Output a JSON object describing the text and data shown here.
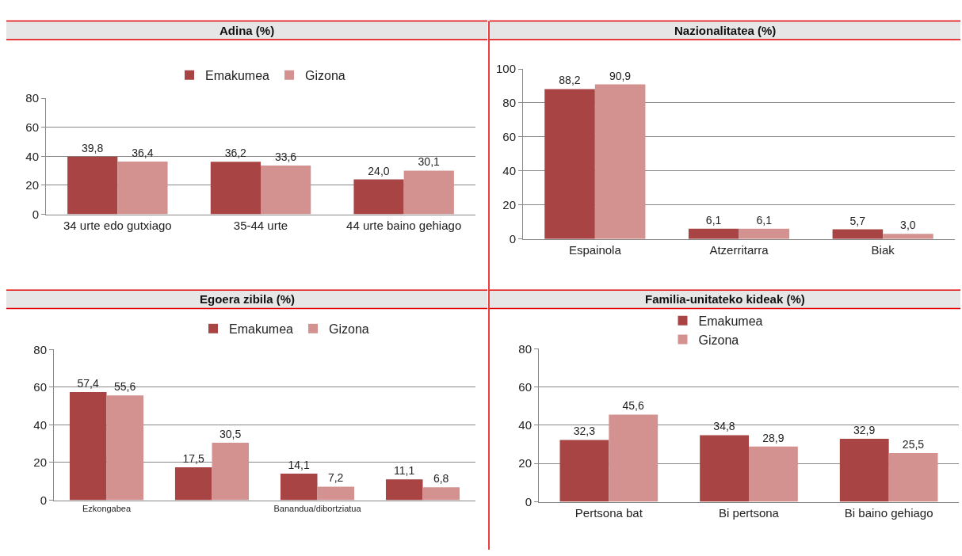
{
  "chart_data": [
    {
      "type": "bar",
      "title": "Adina (%)",
      "categories": [
        "34 urte edo gutxiago",
        "35-44 urte",
        "44 urte baino gehiago"
      ],
      "series": [
        {
          "name": "Emakumea",
          "color": "#a84444",
          "values": [
            39.8,
            36.2,
            24.0
          ],
          "value_labels": [
            "39,8",
            "36,2",
            "24,0"
          ]
        },
        {
          "name": "Gizona",
          "color": "#d39290",
          "values": [
            36.4,
            33.6,
            30.1
          ],
          "value_labels": [
            "36,4",
            "33,6",
            "30,1"
          ]
        }
      ],
      "ylim": [
        0,
        80
      ],
      "yticks": [
        0,
        20,
        40,
        60,
        80
      ],
      "grid": "y",
      "legend": "top"
    },
    {
      "type": "bar",
      "title": "Nazionalitatea (%)",
      "categories": [
        "Espainola",
        "Atzerritarra",
        "Biak"
      ],
      "series": [
        {
          "color": "#a84444",
          "values": [
            88.2,
            6.1,
            5.7
          ],
          "value_labels": [
            "88,2",
            "6,1",
            "5,7"
          ]
        },
        {
          "color": "#d39290",
          "values": [
            90.9,
            6.1,
            3.0
          ],
          "value_labels": [
            "90,9",
            "6,1",
            "3,0"
          ]
        }
      ],
      "ylim": [
        0,
        100
      ],
      "yticks": [
        0,
        20,
        40,
        60,
        80,
        100
      ],
      "grid": "y"
    },
    {
      "type": "bar",
      "title": "Egoera zibila (%)",
      "categories": [
        "Ezkongabea",
        null,
        "Banandua/dibortziatua",
        null
      ],
      "series": [
        {
          "name": "Emakumea",
          "color": "#a84444",
          "values": [
            57.4,
            17.5,
            14.1,
            11.1
          ],
          "value_labels": [
            "57,4",
            "17,5",
            "14,1",
            "11,1"
          ]
        },
        {
          "name": "Gizona",
          "color": "#d39290",
          "values": [
            55.6,
            30.5,
            7.2,
            6.8
          ],
          "value_labels": [
            "55,6",
            "30,5",
            "7,2",
            "6,8"
          ]
        }
      ],
      "ylim": [
        0,
        80
      ],
      "yticks": [
        0,
        20,
        40,
        60,
        80
      ],
      "grid": "y",
      "legend": "top"
    },
    {
      "type": "bar",
      "title": "Familia-unitateko kideak (%)",
      "categories": [
        "Pertsona bat",
        "Bi pertsona",
        "Bi baino gehiago"
      ],
      "series": [
        {
          "name": "Emakumea",
          "color": "#a84444",
          "values": [
            32.3,
            34.8,
            32.9
          ],
          "value_labels": [
            "32,3",
            "34,8",
            "32,9"
          ]
        },
        {
          "name": "Gizona",
          "color": "#d39290",
          "values": [
            45.6,
            28.9,
            25.5
          ],
          "value_labels": [
            "45,6",
            "28,9",
            "25,5"
          ]
        }
      ],
      "ylim": [
        0,
        80
      ],
      "yticks": [
        0,
        20,
        40,
        60,
        80
      ],
      "grid": "y",
      "legend": "top"
    }
  ]
}
